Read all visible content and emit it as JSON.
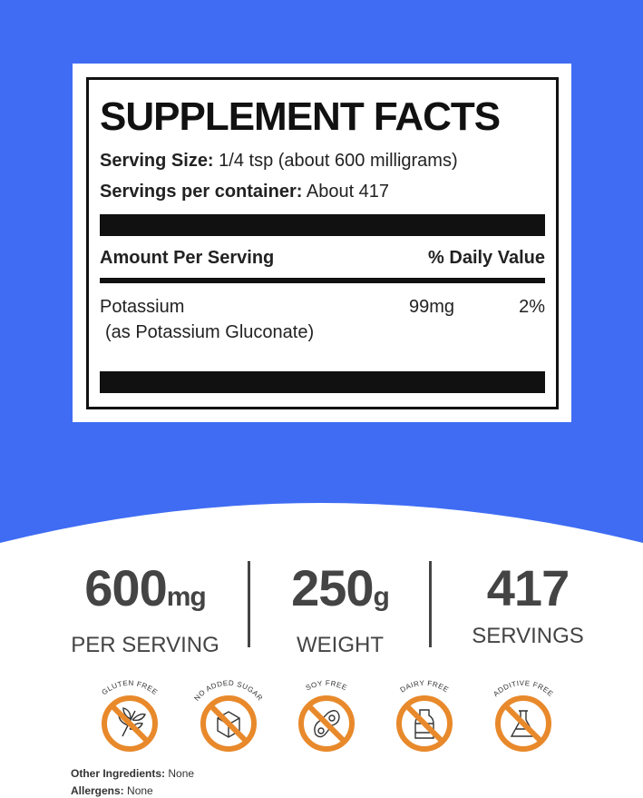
{
  "colors": {
    "background_blue": "#3f6cf3",
    "accent_orange": "#e8892b"
  },
  "facts": {
    "title": "SUPPLEMENT FACTS",
    "serving_size_label": "Serving Size:",
    "serving_size_value": "1/4 tsp (about 600 milligrams)",
    "servings_label": "Servings per container:",
    "servings_value": "About 417",
    "amount_header": "Amount Per Serving",
    "dv_header": "% Daily Value",
    "ingredient": "Potassium",
    "ingredient_source": "(as Potassium Gluconate)",
    "amount": "99mg",
    "dv": "2%"
  },
  "stats": [
    {
      "value": "600",
      "unit": "mg",
      "label": "PER SERVING"
    },
    {
      "value": "250",
      "unit": "g",
      "label": "WEIGHT"
    },
    {
      "value": "417",
      "unit": "",
      "label": "SERVINGS"
    }
  ],
  "badges": [
    {
      "label": "GLUTEN FREE",
      "icon": "wheat-icon"
    },
    {
      "label": "NO ADDED SUGAR",
      "icon": "sugar-cube-icon"
    },
    {
      "label": "SOY FREE",
      "icon": "soybean-icon"
    },
    {
      "label": "DAIRY FREE",
      "icon": "milk-bottle-icon"
    },
    {
      "label": "ADDITIVE FREE",
      "icon": "flask-icon"
    }
  ],
  "footer": {
    "other_label": "Other Ingredients:",
    "other_value": "None",
    "allergens_label": "Allergens:",
    "allergens_value": "None"
  }
}
